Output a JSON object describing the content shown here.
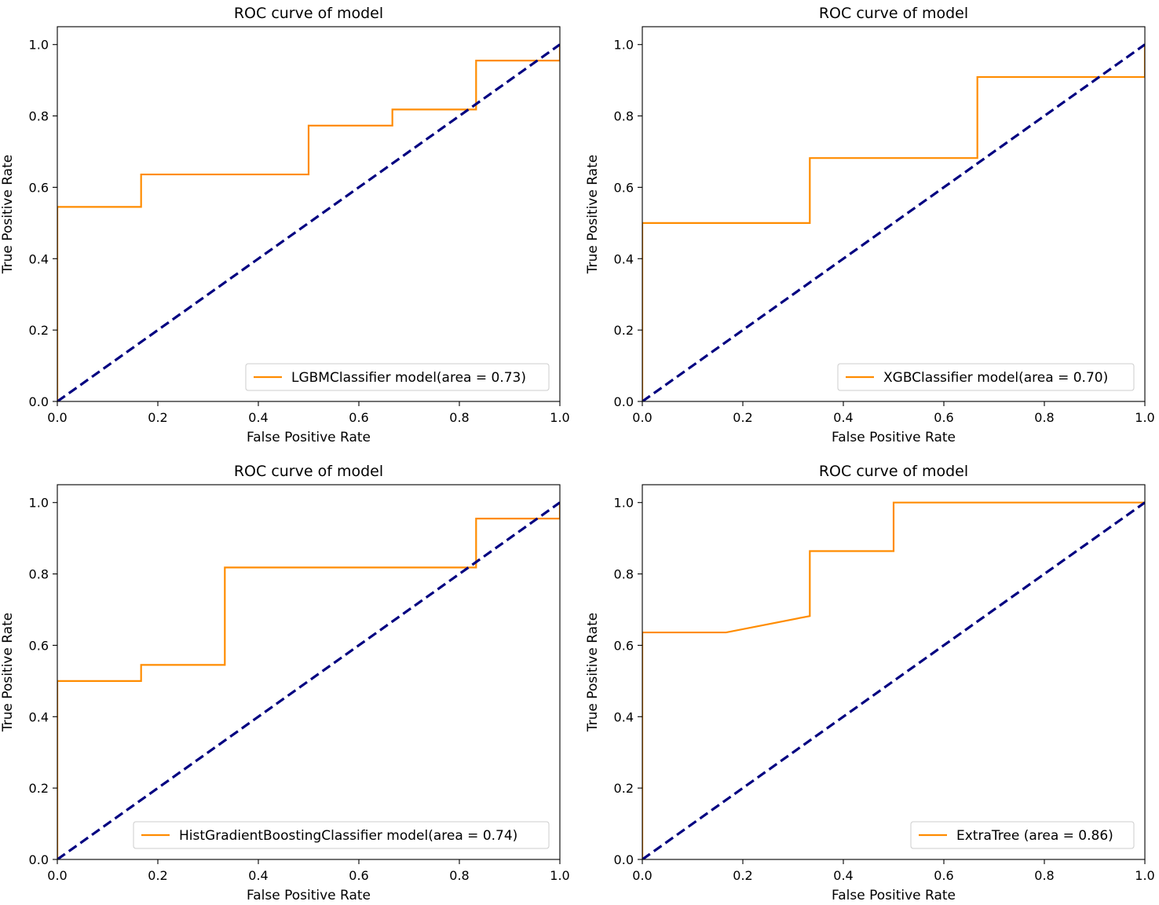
{
  "chart_data": [
    {
      "type": "line",
      "title": "ROC curve of model",
      "xlabel": "False Positive Rate",
      "ylabel": "True Positive Rate",
      "xlim": [
        0,
        1
      ],
      "ylim": [
        0,
        1.05
      ],
      "xticks": [
        "0.0",
        "0.2",
        "0.4",
        "0.6",
        "0.8",
        "1.0"
      ],
      "yticks": [
        "0.0",
        "0.2",
        "0.4",
        "0.6",
        "0.8",
        "1.0"
      ],
      "legend_position": "lower-right",
      "series": [
        {
          "name": "LGBMClassifier model(area = 0.73)",
          "color": "#ff8c00",
          "style": "solid",
          "x": [
            0,
            0,
            0.1667,
            0.1667,
            0.5,
            0.5,
            0.6667,
            0.6667,
            0.8333,
            0.8333,
            1.0,
            1.0
          ],
          "y": [
            0,
            0.545,
            0.545,
            0.636,
            0.636,
            0.773,
            0.773,
            0.818,
            0.818,
            0.955,
            0.955,
            1.0
          ]
        },
        {
          "name": "",
          "color": "#000080",
          "style": "dashed",
          "x": [
            0,
            1
          ],
          "y": [
            0,
            1
          ]
        }
      ]
    },
    {
      "type": "line",
      "title": "ROC curve of model",
      "xlabel": "False Positive Rate",
      "ylabel": "True Positive Rate",
      "xlim": [
        0,
        1
      ],
      "ylim": [
        0,
        1.05
      ],
      "xticks": [
        "0.0",
        "0.2",
        "0.4",
        "0.6",
        "0.8",
        "1.0"
      ],
      "yticks": [
        "0.0",
        "0.2",
        "0.4",
        "0.6",
        "0.8",
        "1.0"
      ],
      "legend_position": "lower-right",
      "series": [
        {
          "name": "XGBClassifier model(area = 0.70)",
          "color": "#ff8c00",
          "style": "solid",
          "x": [
            0,
            0,
            0.3333,
            0.3333,
            0.6667,
            0.6667,
            1.0,
            1.0
          ],
          "y": [
            0,
            0.5,
            0.5,
            0.682,
            0.682,
            0.909,
            0.909,
            1.0
          ]
        },
        {
          "name": "",
          "color": "#000080",
          "style": "dashed",
          "x": [
            0,
            1
          ],
          "y": [
            0,
            1
          ]
        }
      ]
    },
    {
      "type": "line",
      "title": "ROC curve of model",
      "xlabel": "False Positive Rate",
      "ylabel": "True Positive Rate",
      "xlim": [
        0,
        1
      ],
      "ylim": [
        0,
        1.05
      ],
      "xticks": [
        "0.0",
        "0.2",
        "0.4",
        "0.6",
        "0.8",
        "1.0"
      ],
      "yticks": [
        "0.0",
        "0.2",
        "0.4",
        "0.6",
        "0.8",
        "1.0"
      ],
      "legend_position": "lower-right",
      "series": [
        {
          "name": "HistGradientBoostingClassifier model(area = 0.74)",
          "color": "#ff8c00",
          "style": "solid",
          "x": [
            0,
            0,
            0.1667,
            0.1667,
            0.3333,
            0.3333,
            0.8333,
            0.8333,
            1.0,
            1.0
          ],
          "y": [
            0,
            0.5,
            0.5,
            0.545,
            0.545,
            0.818,
            0.818,
            0.955,
            0.955,
            1.0
          ]
        },
        {
          "name": "",
          "color": "#000080",
          "style": "dashed",
          "x": [
            0,
            1
          ],
          "y": [
            0,
            1
          ]
        }
      ]
    },
    {
      "type": "line",
      "title": "ROC curve of model",
      "xlabel": "False Positive Rate",
      "ylabel": "True Positive Rate",
      "xlim": [
        0,
        1
      ],
      "ylim": [
        0,
        1.05
      ],
      "xticks": [
        "0.0",
        "0.2",
        "0.4",
        "0.6",
        "0.8",
        "1.0"
      ],
      "yticks": [
        "0.0",
        "0.2",
        "0.4",
        "0.6",
        "0.8",
        "1.0"
      ],
      "legend_position": "lower-right",
      "series": [
        {
          "name": "ExtraTree (area = 0.86)",
          "color": "#ff8c00",
          "style": "solid",
          "x": [
            0,
            0,
            0.1667,
            0.3333,
            0.3333,
            0.5,
            0.5,
            1.0
          ],
          "y": [
            0,
            0.636,
            0.636,
            0.682,
            0.864,
            0.864,
            1.0,
            1.0
          ]
        },
        {
          "name": "",
          "color": "#000080",
          "style": "dashed",
          "x": [
            0,
            1
          ],
          "y": [
            0,
            1
          ]
        }
      ]
    }
  ]
}
